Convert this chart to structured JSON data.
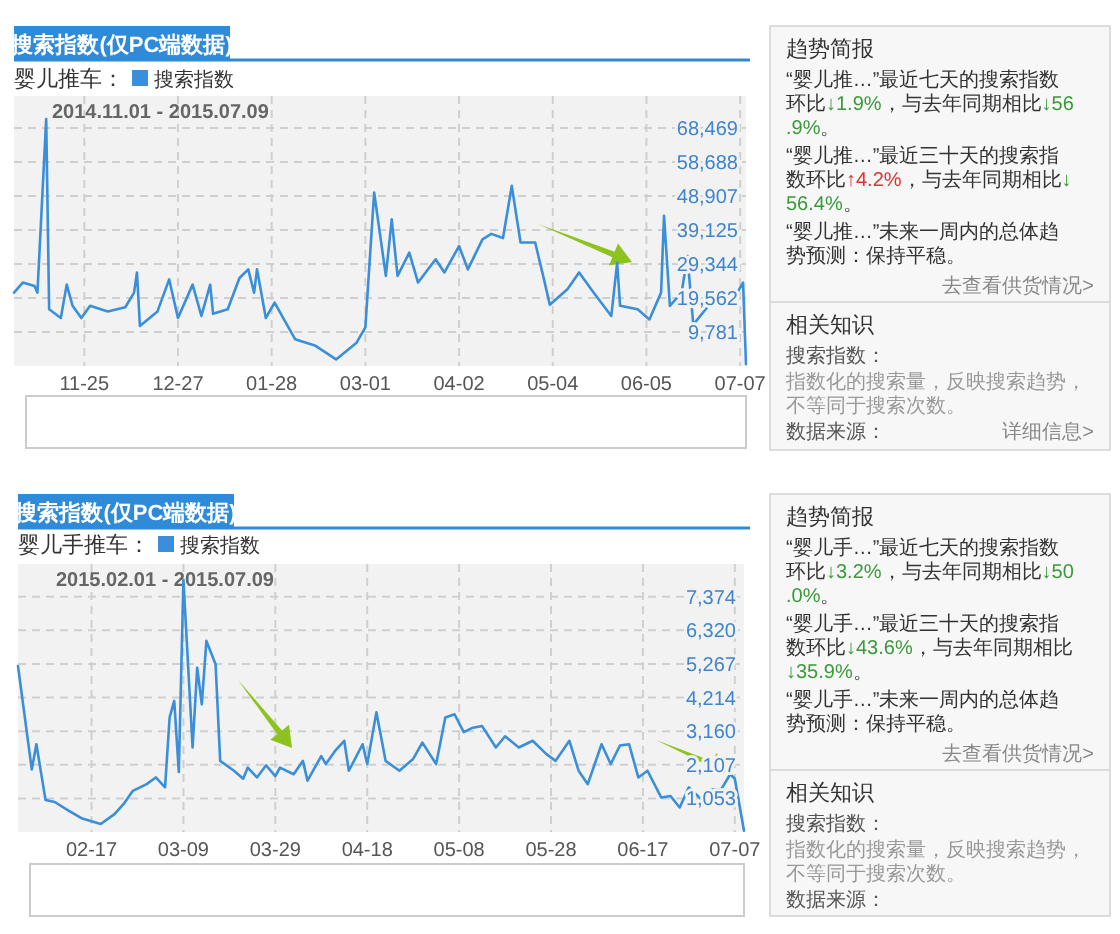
{
  "chart_data": [
    {
      "type": "line",
      "title": "搜索指数(仅PC端数据)",
      "subtitle": "婴儿推车：",
      "legend": "top",
      "grid": true,
      "annotations": [
        "2014.11.01 - 2015.07.09"
      ],
      "x": [
        "2014-11-01",
        "2014-11-04",
        "2014-11-08",
        "2014-11-09",
        "2014-11-12",
        "2014-11-13",
        "2014-11-17",
        "2014-11-19",
        "2014-11-21",
        "2014-11-24",
        "2014-11-27",
        "2014-12-03",
        "2014-12-09",
        "2014-12-12",
        "2014-12-13",
        "2014-12-14",
        "2014-12-20",
        "2014-12-24",
        "2014-12-27",
        "2015-01-01",
        "2015-01-04",
        "2015-01-07",
        "2015-01-08",
        "2015-01-13",
        "2015-01-17",
        "2015-01-20",
        "2015-01-22",
        "2015-01-23",
        "2015-01-26",
        "2015-01-29",
        "2015-02-05",
        "2015-02-12",
        "2015-02-19",
        "2015-02-26",
        "2015-03-01",
        "2015-03-04",
        "2015-03-08",
        "2015-03-10",
        "2015-03-12",
        "2015-03-16",
        "2015-03-19",
        "2015-03-25",
        "2015-03-28",
        "2015-04-02",
        "2015-04-05",
        "2015-04-10",
        "2015-04-13",
        "2015-04-17",
        "2015-04-20",
        "2015-04-23",
        "2015-04-28",
        "2015-05-01",
        "2015-05-03",
        "2015-05-09",
        "2015-05-13",
        "2015-05-18",
        "2015-05-24",
        "2015-05-26",
        "2015-05-27",
        "2015-06-02",
        "2015-06-06",
        "2015-06-10",
        "2015-06-11",
        "2015-06-13",
        "2015-06-17",
        "2015-06-19",
        "2015-06-21",
        "2015-06-27",
        "2015-07-02",
        "2015-07-06",
        "2015-07-08",
        "2015-07-09"
      ],
      "series": [
        {
          "name": "搜索指数",
          "color": "#3a8fd8",
          "values": [
            21100,
            24000,
            23000,
            21100,
            71000,
            16300,
            13800,
            23400,
            17300,
            13800,
            17300,
            15700,
            16900,
            21100,
            26900,
            11500,
            15700,
            24900,
            13800,
            23400,
            14400,
            23400,
            15000,
            16300,
            25300,
            27800,
            21100,
            27800,
            13800,
            18200,
            7700,
            5800,
            1900,
            6700,
            11100,
            49900,
            25900,
            42200,
            25900,
            32600,
            24000,
            30700,
            26900,
            34500,
            27800,
            36400,
            38000,
            36800,
            51800,
            35500,
            35500,
            24900,
            17600,
            22100,
            26900,
            21100,
            14400,
            29700,
            17300,
            16300,
            13400,
            21100,
            43200,
            17300,
            21100,
            31600,
            11900,
            18200,
            20100,
            21100,
            24000,
            500
          ]
        }
      ],
      "xlim": [
        "2014-11-01",
        "2015-07-09"
      ],
      "xticks": [
        {
          "value": "2014-11-25",
          "label": "11-25"
        },
        {
          "value": "2014-12-27",
          "label": "12-27"
        },
        {
          "value": "2015-01-28",
          "label": "01-28"
        },
        {
          "value": "2015-03-01",
          "label": "03-01"
        },
        {
          "value": "2015-04-02",
          "label": "04-02"
        },
        {
          "value": "2015-05-04",
          "label": "05-04"
        },
        {
          "value": "2015-06-05",
          "label": "06-05"
        },
        {
          "value": "2015-07-07",
          "label": "07-07"
        }
      ],
      "ylim": [
        0,
        77650
      ],
      "yticks": [
        {
          "value": 9781,
          "label": "9,781"
        },
        {
          "value": 19562,
          "label": "19,562"
        },
        {
          "value": 29344,
          "label": "29,344"
        },
        {
          "value": 39125,
          "label": "39,125"
        },
        {
          "value": 48907,
          "label": "48,907"
        },
        {
          "value": 58688,
          "label": "58,688"
        },
        {
          "value": 68469,
          "label": "68,469"
        }
      ]
    },
    {
      "type": "other",
      "title": "趋势简报",
      "annotations": [
        "“婴儿推…”最近七天的搜索指数环比↓1.9%，与去年同期相比↓56.9%。",
        "“婴儿推…”最近三十天的搜索指数环比↑4.2%，与去年同期相比↓56.4%。",
        "“婴儿推…”未来一周内的总体趋势预测：保持平稳。",
        "去查看供货情况>"
      ]
    },
    {
      "type": "other",
      "title": "相关知识",
      "annotations": [
        "搜索指数：",
        "指数化的搜索量，反映搜索趋势，不等同于搜索次数。",
        "数据来源：",
        "详细信息>"
      ]
    },
    {
      "type": "line",
      "title": "搜索指数(仅PC端数据)",
      "subtitle": "婴儿手推车：",
      "legend": "top",
      "grid": true,
      "annotations": [
        "2015.02.01 - 2015.07.09"
      ],
      "x": [
        "2015-02-01",
        "2015-02-04",
        "2015-02-05",
        "2015-02-07",
        "2015-02-09",
        "2015-02-12",
        "2015-02-15",
        "2015-02-19",
        "2015-02-22",
        "2015-02-24",
        "2015-02-26",
        "2015-03-01",
        "2015-03-03",
        "2015-03-05",
        "2015-03-06",
        "2015-03-07",
        "2015-03-08",
        "2015-03-09",
        "2015-03-11",
        "2015-03-12",
        "2015-03-13",
        "2015-03-14",
        "2015-03-16",
        "2015-03-17",
        "2015-03-20",
        "2015-03-22",
        "2015-03-23",
        "2015-03-25",
        "2015-03-27",
        "2015-03-29",
        "2015-03-30",
        "2015-04-02",
        "2015-04-04",
        "2015-04-05",
        "2015-04-08",
        "2015-04-09",
        "2015-04-11",
        "2015-04-13",
        "2015-04-14",
        "2015-04-17",
        "2015-04-18",
        "2015-04-20",
        "2015-04-22",
        "2015-04-25",
        "2015-04-28",
        "2015-04-30",
        "2015-05-03",
        "2015-05-05",
        "2015-05-07",
        "2015-05-09",
        "2015-05-11",
        "2015-05-13",
        "2015-05-16",
        "2015-05-18",
        "2015-05-21",
        "2015-05-24",
        "2015-05-27",
        "2015-05-29",
        "2015-06-01",
        "2015-06-03",
        "2015-06-05",
        "2015-06-08",
        "2015-06-10",
        "2015-06-12",
        "2015-06-14",
        "2015-06-16",
        "2015-06-18",
        "2015-06-21",
        "2015-06-23",
        "2015-06-25",
        "2015-06-27",
        "2015-06-30",
        "2015-07-02",
        "2015-07-04",
        "2015-07-06",
        "2015-07-07",
        "2015-07-09"
      ],
      "series": [
        {
          "name": "搜索指数",
          "color": "#3a8fd8",
          "values": [
            5200,
            1960,
            2750,
            1000,
            940,
            670,
            420,
            250,
            560,
            880,
            1290,
            1500,
            1710,
            1400,
            3590,
            4110,
            1880,
            7900,
            2650,
            5150,
            4000,
            5990,
            5260,
            2230,
            1920,
            1670,
            2020,
            1710,
            2090,
            1750,
            2020,
            1810,
            2230,
            1610,
            2380,
            2130,
            2540,
            2860,
            1920,
            2750,
            2130,
            3750,
            2230,
            1920,
            2290,
            2800,
            2130,
            3590,
            3690,
            3130,
            3270,
            3320,
            2650,
            3000,
            2650,
            2860,
            2440,
            2230,
            2860,
            1920,
            1500,
            2750,
            2130,
            2710,
            2750,
            1710,
            1920,
            1080,
            1130,
            770,
            1400,
            980,
            1330,
            1330,
            1810,
            1670,
            40
          ]
        }
      ],
      "xlim": [
        "2015-02-01",
        "2015-07-09"
      ],
      "xticks": [
        {
          "value": "2015-02-17",
          "label": "02-17"
        },
        {
          "value": "2015-03-09",
          "label": "03-09"
        },
        {
          "value": "2015-03-29",
          "label": "03-29"
        },
        {
          "value": "2015-04-18",
          "label": "04-18"
        },
        {
          "value": "2015-05-08",
          "label": "05-08"
        },
        {
          "value": "2015-05-28",
          "label": "05-28"
        },
        {
          "value": "2015-06-17",
          "label": "06-17"
        },
        {
          "value": "2015-07-07",
          "label": "07-07"
        }
      ],
      "ylim": [
        0,
        8400
      ],
      "yticks": [
        {
          "value": 1053,
          "label": "1,053"
        },
        {
          "value": 2107,
          "label": "2,107"
        },
        {
          "value": 3160,
          "label": "3,160"
        },
        {
          "value": 4214,
          "label": "4,214"
        },
        {
          "value": 5267,
          "label": "5,267"
        },
        {
          "value": 6320,
          "label": "6,320"
        },
        {
          "value": 7374,
          "label": "7,374"
        }
      ]
    },
    {
      "type": "other",
      "title": "趋势简报",
      "annotations": [
        "“婴儿手…”最近七天的搜索指数环比↓3.2%，与去年同期相比↓50.0%。",
        "“婴儿手…”最近三十天的搜索指数环比↓43.6%，与去年同期相比↓35.9%。",
        "“婴儿手…”未来一周内的总体趋势预测：保持平稳。",
        "去查看供货情况>"
      ]
    },
    {
      "type": "other",
      "title": "相关知识",
      "annotations": [
        "搜索指数：",
        "指数化的搜索量，反映搜索趋势，不等同于搜索次数。",
        "数据来源："
      ]
    }
  ]
}
